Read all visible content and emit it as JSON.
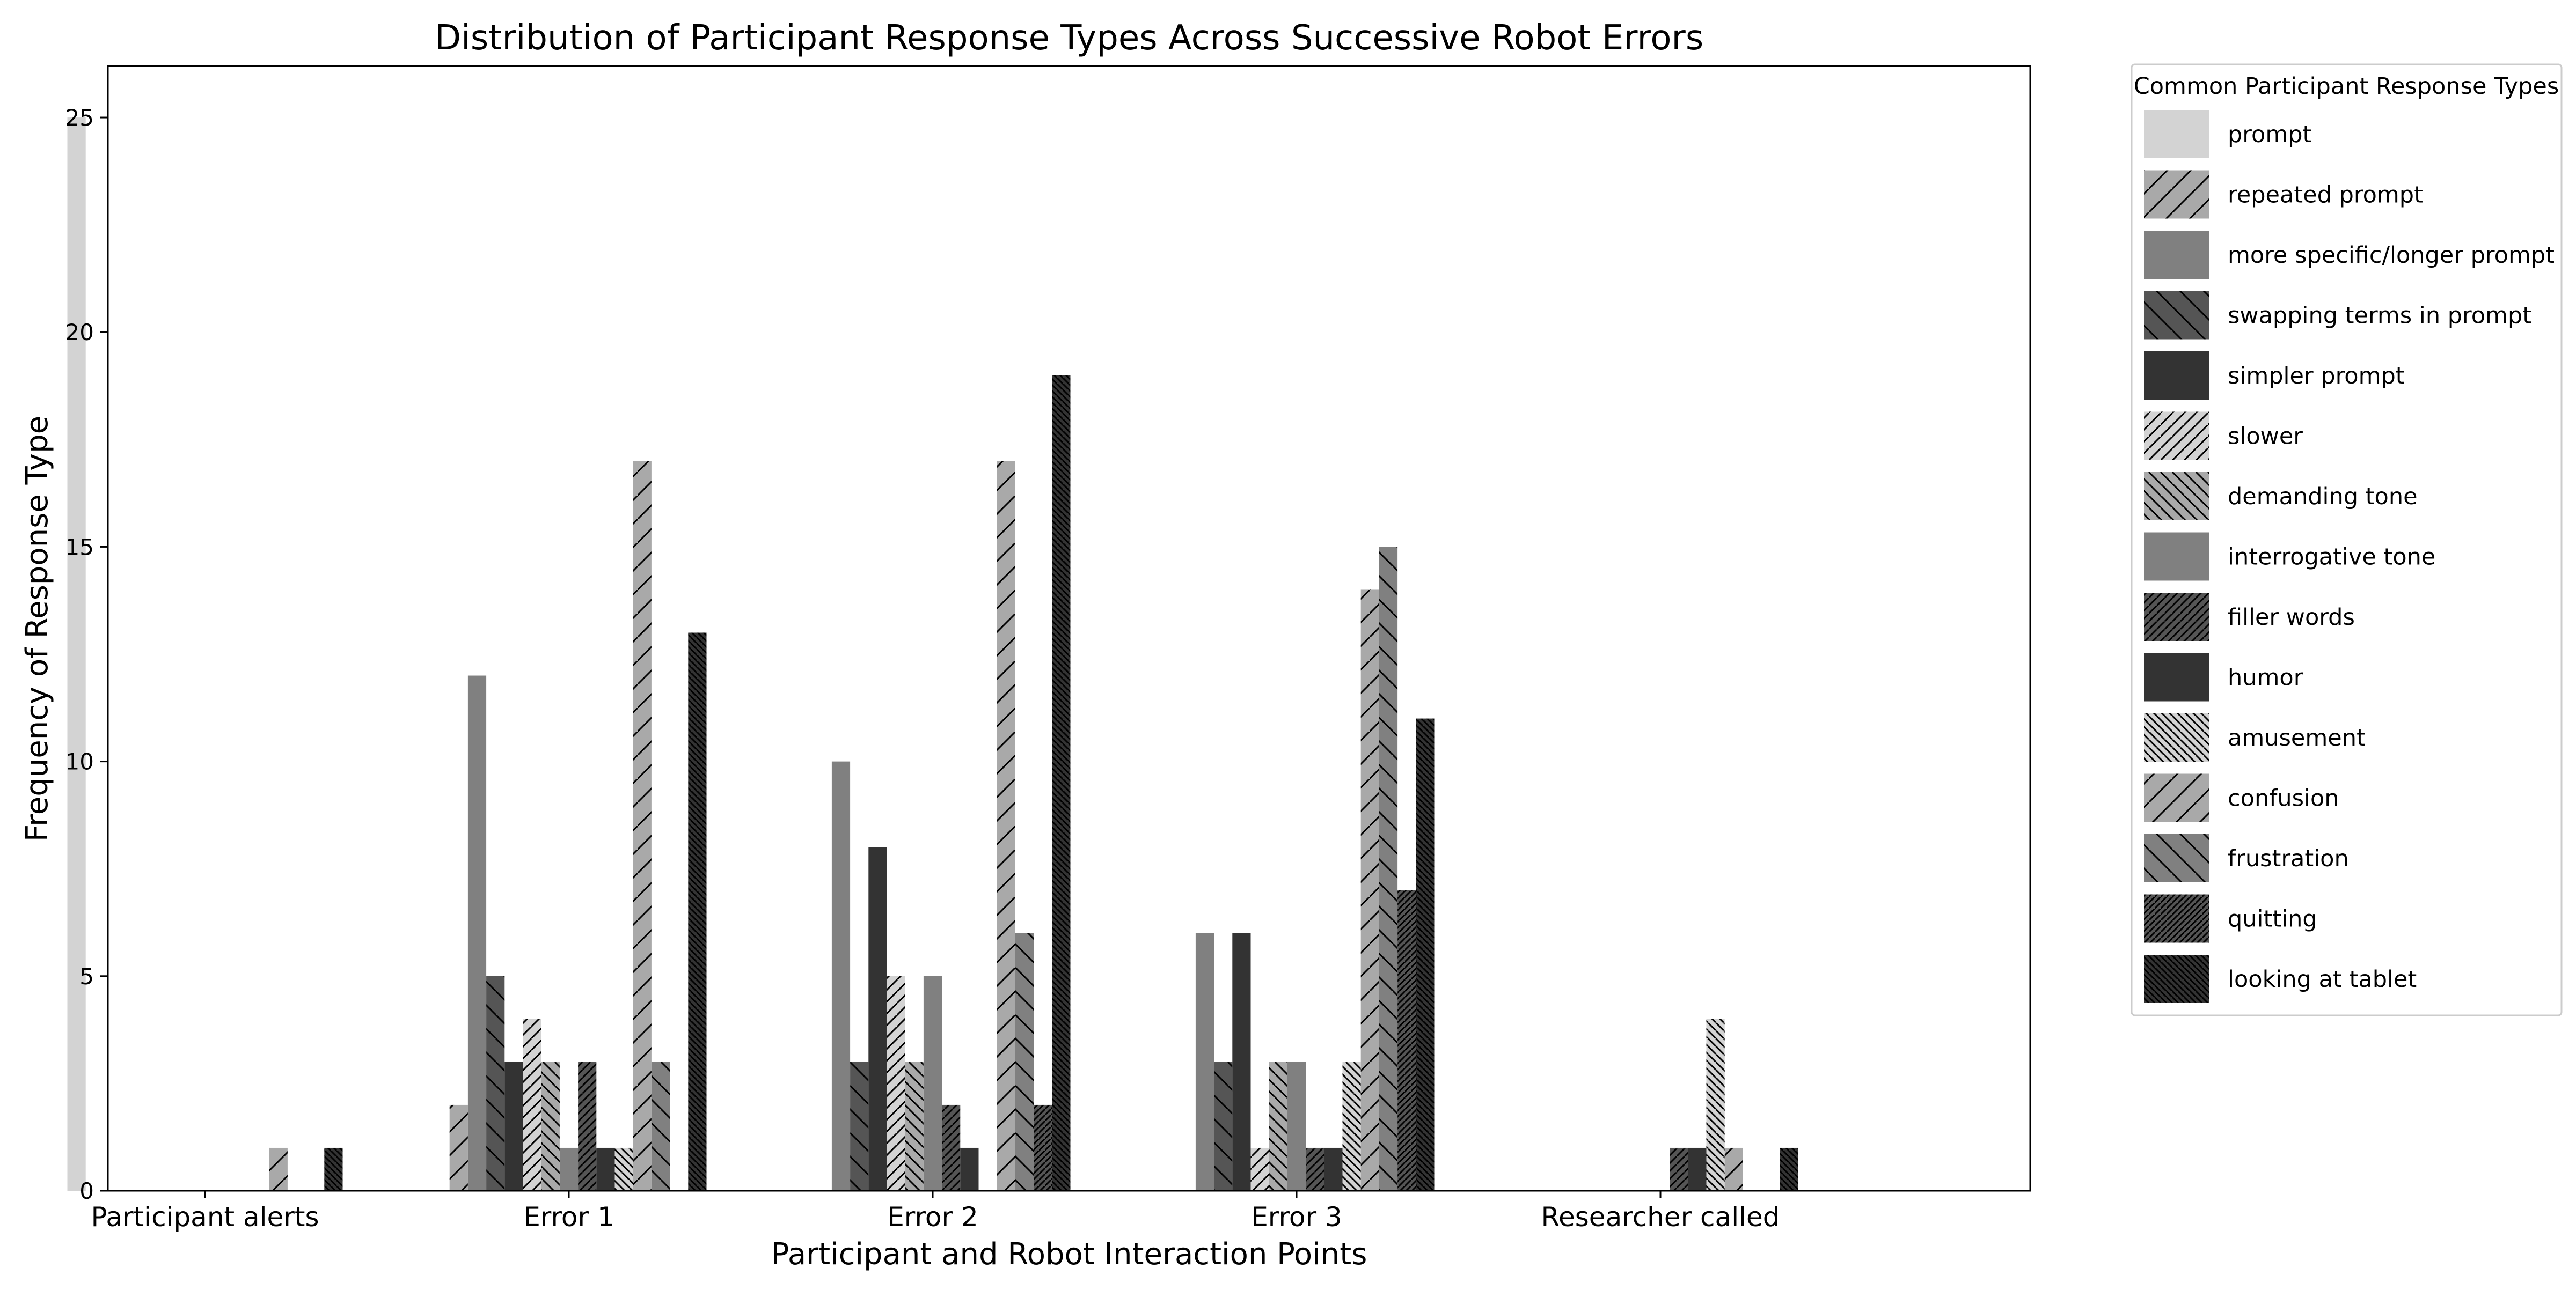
{
  "chart_data": {
    "type": "bar",
    "title": "Distribution of Participant Response Types Across Successive Robot Errors",
    "xlabel": "Participant and Robot Interaction Points",
    "ylabel": "Frequency of Response Type",
    "ylim": [
      0,
      26.2
    ],
    "y_ticks": [
      0,
      5,
      10,
      15,
      20,
      25
    ],
    "categories": [
      "Participant alerts",
      "Error 1",
      "Error 2",
      "Error 3",
      "Researcher called"
    ],
    "grid": false,
    "legend": {
      "title": "Common Participant Response Types",
      "placement": "outside-right"
    },
    "series": [
      {
        "name": "prompt",
        "color": "#d3d3d3",
        "hatch": "none",
        "values": [
          25,
          0,
          0,
          0,
          0
        ]
      },
      {
        "name": "repeated prompt",
        "color": "#a9a9a9",
        "hatch": "/",
        "values": [
          0,
          2,
          0,
          0,
          0
        ]
      },
      {
        "name": "more specific/longer prompt",
        "color": "#808080",
        "hatch": "none",
        "values": [
          0,
          12,
          10,
          6,
          0
        ]
      },
      {
        "name": "swapping terms in prompt",
        "color": "#555555",
        "hatch": "\\",
        "values": [
          0,
          5,
          3,
          3,
          0
        ]
      },
      {
        "name": "simpler prompt",
        "color": "#333333",
        "hatch": "none",
        "values": [
          0,
          3,
          8,
          6,
          0
        ]
      },
      {
        "name": "slower",
        "color": "#d3d3d3",
        "hatch": "//",
        "values": [
          0,
          4,
          5,
          1,
          0
        ]
      },
      {
        "name": "demanding tone",
        "color": "#a9a9a9",
        "hatch": "\\\\",
        "values": [
          0,
          3,
          3,
          3,
          0
        ]
      },
      {
        "name": "interrogative tone",
        "color": "#808080",
        "hatch": "none",
        "values": [
          0,
          1,
          5,
          3,
          0
        ]
      },
      {
        "name": "filler words",
        "color": "#555555",
        "hatch": "///",
        "values": [
          0,
          3,
          2,
          1,
          1
        ]
      },
      {
        "name": "humor",
        "color": "#333333",
        "hatch": "none",
        "values": [
          0,
          1,
          1,
          1,
          1
        ]
      },
      {
        "name": "amusement",
        "color": "#d3d3d3",
        "hatch": "\\\\\\",
        "values": [
          0,
          1,
          0,
          3,
          4
        ]
      },
      {
        "name": "confusion",
        "color": "#a9a9a9",
        "hatch": "/",
        "values": [
          1,
          17,
          17,
          14,
          1
        ]
      },
      {
        "name": "frustration",
        "color": "#808080",
        "hatch": "\\",
        "values": [
          0,
          3,
          6,
          15,
          0
        ]
      },
      {
        "name": "quitting",
        "color": "#555555",
        "hatch": "////",
        "values": [
          0,
          0,
          2,
          7,
          0
        ]
      },
      {
        "name": "looking at tablet",
        "color": "#333333",
        "hatch": "\\\\\\\\",
        "values": [
          1,
          13,
          19,
          11,
          1
        ]
      }
    ]
  }
}
